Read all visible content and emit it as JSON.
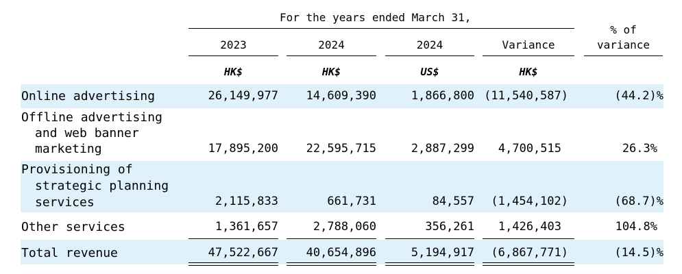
{
  "header": {
    "period_title": "For the  years ended March  31,",
    "pct_header_line1": "% of",
    "pct_header_line2": "variance"
  },
  "columns": [
    {
      "year": "2023",
      "currency": "HK$"
    },
    {
      "year": "2024",
      "currency": "HK$"
    },
    {
      "year": "2024",
      "currency": "US$"
    },
    {
      "year": "Variance",
      "currency": "HK$"
    }
  ],
  "rows": [
    {
      "label_lines": [
        "Online advertising"
      ],
      "values": [
        "26,149,977",
        "14,609,390",
        "1,866,800",
        "(11,540,587)"
      ],
      "pct": "(44.2)%",
      "shaded": true
    },
    {
      "label_lines": [
        "Offline advertising",
        "and web banner",
        "marketing"
      ],
      "values": [
        "17,895,200",
        "22,595,715",
        "2,887,299",
        "4,700,515"
      ],
      "pct": "26.3%",
      "shaded": false
    },
    {
      "label_lines": [
        "Provisioning of",
        "strategic planning",
        "services"
      ],
      "values": [
        "2,115,833",
        "661,731",
        "84,557",
        "(1,454,102)"
      ],
      "pct": "(68.7)%",
      "shaded": true
    },
    {
      "label_lines": [
        "Other services"
      ],
      "values": [
        "1,361,657",
        "2,788,060",
        "356,261",
        "1,426,403"
      ],
      "pct": "104.8%",
      "shaded": false
    },
    {
      "label_lines": [
        "Total revenue"
      ],
      "values": [
        "47,522,667",
        "40,654,896",
        "5,194,917",
        "(6,867,771)"
      ],
      "pct": "(14.5)%",
      "shaded": true
    }
  ],
  "colors": {
    "band": "#dff2fb"
  }
}
